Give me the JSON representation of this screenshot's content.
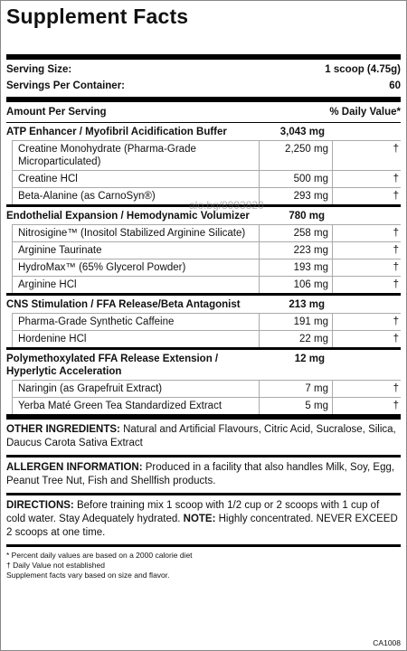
{
  "title": "Supplement Facts",
  "serving": {
    "size_label": "Serving Size:",
    "size": "1 scoop (4.75g)",
    "per_container_label": "Servings Per Container:",
    "per_container": "60"
  },
  "header": {
    "amount": "Amount Per Serving",
    "dv": "% Daily Value*"
  },
  "blends": [
    {
      "name": "ATP Enhancer / Myofibril Acidification Buffer",
      "amount": "3,043 mg",
      "ingredients": [
        {
          "name": "Creatine Monohydrate (Pharma-Grade Microparticulated)",
          "amount": "2,250 mg",
          "dv": "†"
        },
        {
          "name": "Creatine HCl",
          "amount": "500 mg",
          "dv": "†"
        },
        {
          "name": "Beta-Alanine (as CarnoSyn®)",
          "amount": "293 mg",
          "dv": "†"
        }
      ]
    },
    {
      "name": "Endothelial Expansion / Hemodynamic Volumizer",
      "amount": "780 mg",
      "ingredients": [
        {
          "name": "Nitrosigine™ (Inositol Stabilized Arginine Silicate)",
          "amount": "258 mg",
          "dv": "†"
        },
        {
          "name": "Arginine Taurinate",
          "amount": "223 mg",
          "dv": "†"
        },
        {
          "name": "HydroMax™ (65% Glycerol Powder)",
          "amount": "193 mg",
          "dv": "†"
        },
        {
          "name": "Arginine HCl",
          "amount": "106 mg",
          "dv": "†"
        }
      ]
    },
    {
      "name": "CNS Stimulation / FFA Release/Beta Antagonist",
      "amount": "213 mg",
      "ingredients": [
        {
          "name": "Pharma-Grade Synthetic Caffeine",
          "amount": "191 mg",
          "dv": "†"
        },
        {
          "name": "Hordenine HCl",
          "amount": "22 mg",
          "dv": "†"
        }
      ]
    },
    {
      "name": "Polymethoxylated FFA Release Extension / Hyperlytic Acceleration",
      "amount": "12 mg",
      "ingredients": [
        {
          "name": "Naringin (as Grapefruit Extract)",
          "amount": "7 mg",
          "dv": "†"
        },
        {
          "name": "Yerba Maté Green Tea Standardized Extract",
          "amount": "5 mg",
          "dv": "†"
        }
      ]
    }
  ],
  "other_ingredients": {
    "label": "OTHER INGREDIENTS:",
    "text": "Natural and Artificial Flavours, Citric Acid, Sucralose, Silica, Daucus Carota Sativa Extract"
  },
  "allergen": {
    "label": "ALLERGEN INFORMATION:",
    "text": "Produced in a facility that also handles Milk, Soy, Egg, Peanut Tree Nut, Fish and Shellfish products."
  },
  "directions": {
    "label": "DIRECTIONS:",
    "text": "Before training mix 1 scoop with 1/2 cup or 2 scoops with 1 cup of cold water. Stay Adequately hydrated.",
    "note_label": "NOTE:",
    "note_text": "Highly concentrated. NEVER EXCEED 2 scoops at one time."
  },
  "footnotes": [
    "* Percent daily values are based on a 2000 calorie diet",
    "† Daily Value not established",
    "Supplement facts vary based on size and flavor."
  ],
  "code": "CA1008",
  "watermark": "alo.bg/8993820"
}
